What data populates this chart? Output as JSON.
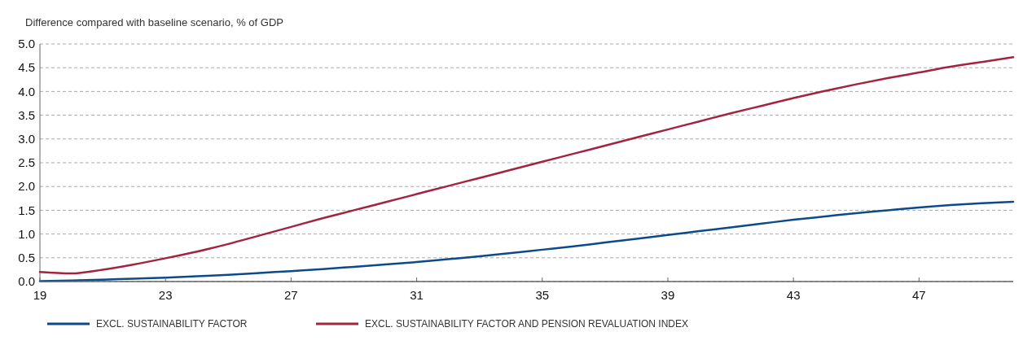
{
  "chart_data": {
    "type": "line",
    "ylabel": "Difference compared with baseline scenario, % of GDP",
    "x": [
      19,
      20,
      21,
      22,
      23,
      24,
      25,
      26,
      27,
      28,
      29,
      30,
      31,
      32,
      33,
      34,
      35,
      36,
      37,
      38,
      39,
      40,
      41,
      42,
      43,
      44,
      45,
      46,
      47,
      48,
      49,
      50
    ],
    "xlim": [
      19,
      50
    ],
    "xticks": [
      19,
      23,
      27,
      31,
      35,
      39,
      43,
      47
    ],
    "ylim": [
      0,
      5
    ],
    "yticks": [
      {
        "value": 0,
        "label": "0.0"
      },
      {
        "value": 0.5,
        "label": "0.5"
      },
      {
        "value": 1,
        "label": "1.0"
      },
      {
        "value": 1.5,
        "label": "1.5"
      },
      {
        "value": 2,
        "label": "2.0"
      },
      {
        "value": 2.5,
        "label": "2.5"
      },
      {
        "value": 3,
        "label": "3.0"
      },
      {
        "value": 3.5,
        "label": "3.5"
      },
      {
        "value": 4,
        "label": "4.0"
      },
      {
        "value": 4.5,
        "label": "4.5"
      },
      {
        "value": 5,
        "label": "5.0"
      }
    ],
    "grid": "y",
    "legend": "bottom",
    "series": [
      {
        "name": "EXCL. SUSTAINABILITY FACTOR",
        "color": "#0d4a8a",
        "values": [
          0.01,
          0.02,
          0.04,
          0.06,
          0.08,
          0.11,
          0.14,
          0.18,
          0.22,
          0.26,
          0.31,
          0.36,
          0.41,
          0.47,
          0.53,
          0.6,
          0.67,
          0.74,
          0.82,
          0.9,
          0.98,
          1.06,
          1.14,
          1.22,
          1.3,
          1.37,
          1.44,
          1.5,
          1.56,
          1.61,
          1.65,
          1.68
        ]
      },
      {
        "name": "EXCL. SUSTAINABILITY FACTOR AND PENSION REVALUATION INDEX",
        "color": "#a3243f",
        "values": [
          0.2,
          0.17,
          0.25,
          0.36,
          0.49,
          0.63,
          0.79,
          0.97,
          1.15,
          1.33,
          1.5,
          1.67,
          1.84,
          2.01,
          2.18,
          2.35,
          2.52,
          2.69,
          2.86,
          3.03,
          3.2,
          3.37,
          3.54,
          3.7,
          3.86,
          4.01,
          4.15,
          4.28,
          4.4,
          4.52,
          4.62,
          4.72
        ]
      }
    ]
  }
}
